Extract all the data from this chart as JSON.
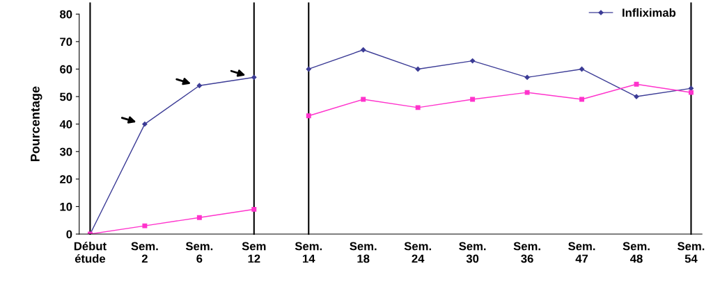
{
  "chart_data": {
    "type": "line",
    "ylabel": "Pourcentage",
    "categories": [
      "Début\nétude",
      "Sem.\n2",
      "Sem.\n6",
      "Sem\n12",
      "Sem.\n14",
      "Sem.\n18",
      "Sem.\n24",
      "Sem.\n30",
      "Sem.\n36",
      "Sem.\n47",
      "Sem.\n48",
      "Sem.\n54"
    ],
    "series": [
      {
        "name": "Infliximab",
        "color": "#3c3c96",
        "marker": "diamond",
        "values": [
          0,
          40,
          54,
          57,
          null,
          null,
          null,
          null,
          null,
          null,
          null,
          null
        ]
      },
      {
        "color": "#3c3c96",
        "marker": "diamond",
        "values": [
          null,
          null,
          null,
          null,
          60,
          67,
          60,
          63,
          57,
          60,
          50,
          53
        ]
      },
      {
        "color": "#ff33cc",
        "marker": "square",
        "values": [
          0,
          3,
          6,
          9,
          null,
          null,
          null,
          null,
          null,
          null,
          null,
          null
        ]
      },
      {
        "color": "#ff33cc",
        "marker": "square",
        "values": [
          null,
          null,
          null,
          null,
          43,
          49,
          46,
          49,
          51.5,
          49,
          54.5,
          51.5
        ]
      }
    ],
    "ylim": [
      0,
      80
    ],
    "yticks": [
      0,
      10,
      20,
      30,
      40,
      50,
      60,
      70,
      80
    ],
    "grid": false,
    "legend": "top right",
    "ref_lines": [
      {
        "axis": "x",
        "value": "Début\nétude",
        "color": "#000000"
      },
      {
        "axis": "x",
        "value": "Sem\n12",
        "color": "#000000"
      },
      {
        "axis": "x",
        "value": "Sem.\n14",
        "color": "#000000"
      },
      {
        "axis": "x",
        "value": "Sem.\n54",
        "color": "#000000"
      }
    ]
  }
}
